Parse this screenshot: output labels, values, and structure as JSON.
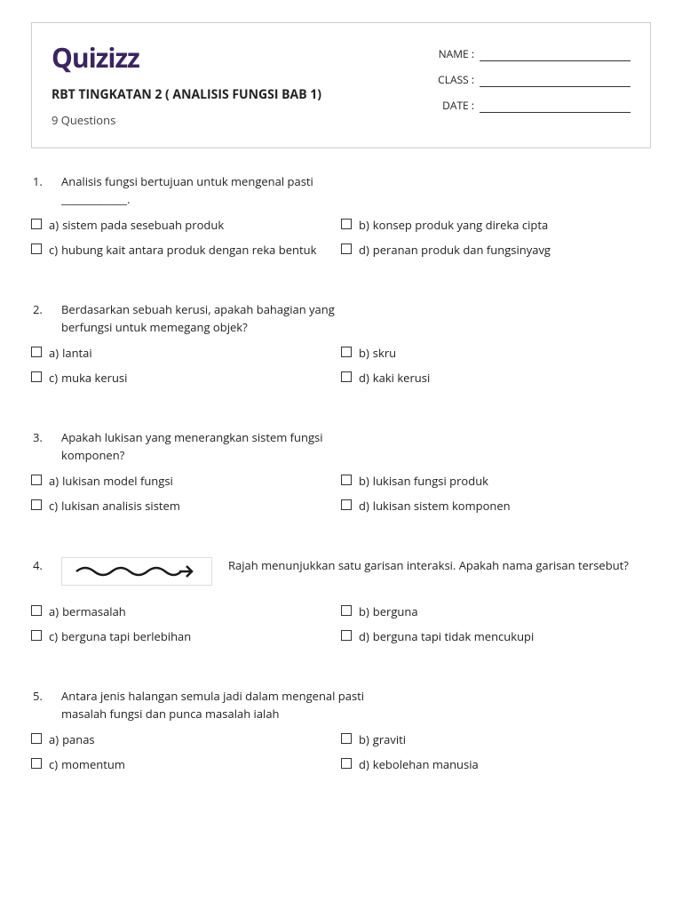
{
  "logo": "Quizizz",
  "title": "RBT TINGKATAN 2 ( ANALISIS FUNGSI BAB 1)",
  "count_label": "9 Questions",
  "fields": {
    "name": "NAME :",
    "class": "CLASS :",
    "date": "DATE :"
  },
  "questions": [
    {
      "n": "1.",
      "text": "Analisis fungsi bertujuan untuk mengenal pasti _____________.",
      "opts": [
        {
          "l": "a)",
          "t": "sistem pada sesebuah produk"
        },
        {
          "l": "b)",
          "t": "konsep produk yang direka cipta"
        },
        {
          "l": "c)",
          "t": "hubung kait antara produk dengan reka bentuk"
        },
        {
          "l": "d)",
          "t": "peranan produk dan fungsinyavg"
        }
      ]
    },
    {
      "n": "2.",
      "text": "Berdasarkan sebuah kerusi, apakah bahagian yang berfungsi untuk memegang objek?",
      "opts": [
        {
          "l": "a)",
          "t": "lantai"
        },
        {
          "l": "b)",
          "t": "skru"
        },
        {
          "l": "c)",
          "t": "muka kerusi"
        },
        {
          "l": "d)",
          "t": "kaki kerusi"
        }
      ]
    },
    {
      "n": "3.",
      "text": "Apakah lukisan yang menerangkan sistem fungsi komponen?",
      "opts": [
        {
          "l": "a)",
          "t": "lukisan model fungsi"
        },
        {
          "l": "b)",
          "t": "lukisan fungsi produk"
        },
        {
          "l": "c)",
          "t": "lukisan analisis sistem"
        },
        {
          "l": "d)",
          "t": "lukisan sistem komponen"
        }
      ]
    },
    {
      "n": "4.",
      "text": "Rajah menunjukkan satu garisan interaksi. Apakah nama garisan tersebut?",
      "has_image": true,
      "opts": [
        {
          "l": "a)",
          "t": "bermasalah"
        },
        {
          "l": "b)",
          "t": "berguna"
        },
        {
          "l": "c)",
          "t": "berguna tapi berlebihan"
        },
        {
          "l": "d)",
          "t": "berguna tapi tidak mencukupi"
        }
      ]
    },
    {
      "n": "5.",
      "text": "Antara jenis halangan semula jadi dalam mengenal pasti masalah fungsi dan punca masalah ialah",
      "opts": [
        {
          "l": "a)",
          "t": "panas"
        },
        {
          "l": "b)",
          "t": "graviti"
        },
        {
          "l": "c)",
          "t": "momentum"
        },
        {
          "l": "d)",
          "t": "kebolehan manusia"
        }
      ]
    }
  ]
}
